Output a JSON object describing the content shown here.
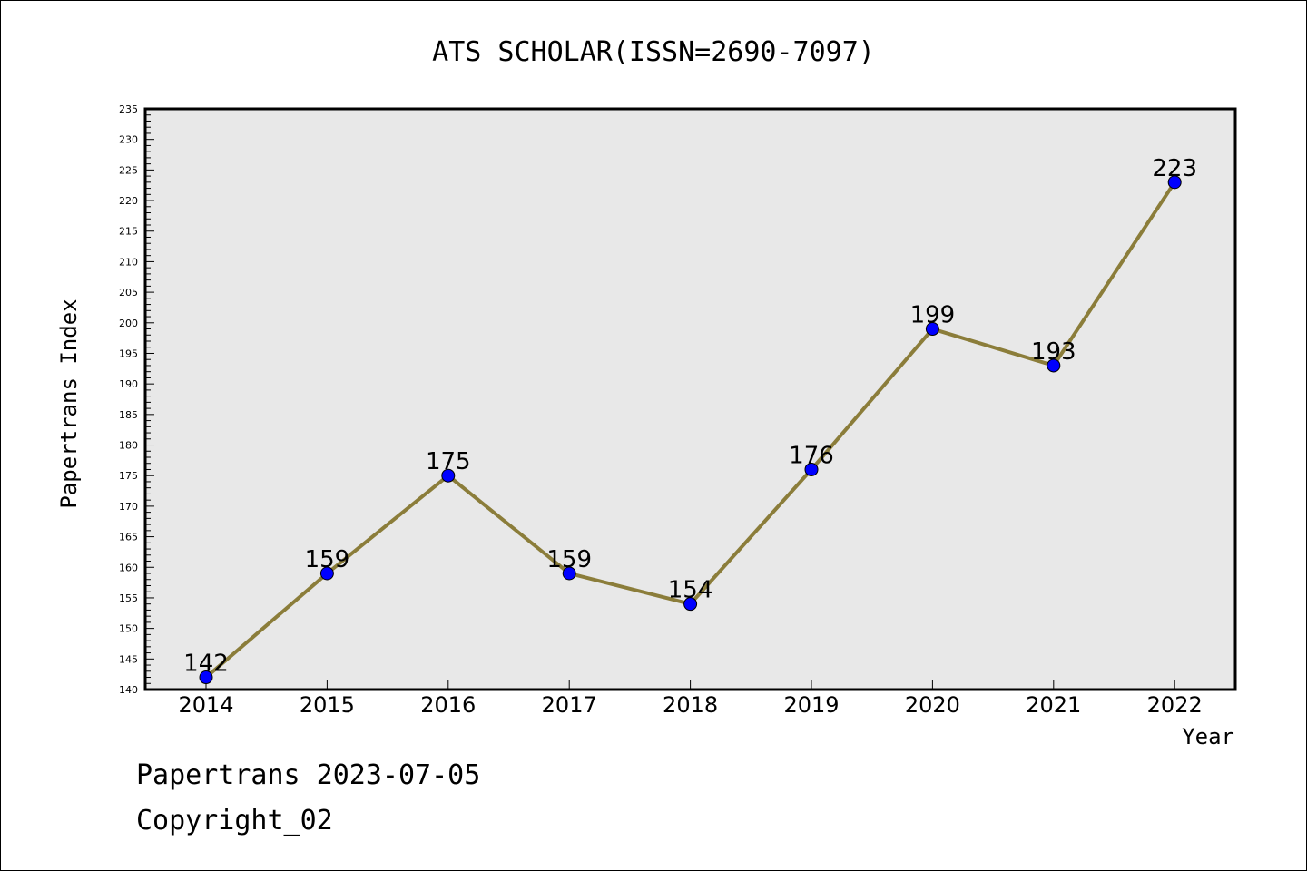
{
  "chart_data": {
    "type": "line",
    "title": "ATS SCHOLAR(ISSN=2690-7097)",
    "xlabel": "Year",
    "ylabel": "Papertrans Index",
    "categories": [
      "2014",
      "2015",
      "2016",
      "2017",
      "2018",
      "2019",
      "2020",
      "2021",
      "2022"
    ],
    "series": [
      {
        "values": [
          142,
          159,
          175,
          159,
          154,
          176,
          199,
          193,
          223
        ]
      }
    ],
    "data_labels": [
      "142",
      "159",
      "175",
      "159",
      "154",
      "176",
      "199",
      "193",
      "223"
    ],
    "ylim": [
      140,
      235
    ],
    "yticks": [
      140,
      145,
      150,
      155,
      160,
      165,
      170,
      175,
      180,
      185,
      190,
      195,
      200,
      205,
      210,
      215,
      220,
      225,
      230,
      235
    ],
    "grid": false,
    "line_color": "#8b7d3a",
    "marker_color": "#0000ff",
    "plot_background": "#e8e8e8"
  },
  "footer": {
    "source": "Papertrans 2023-07-05",
    "copyright": "Copyright_02"
  }
}
